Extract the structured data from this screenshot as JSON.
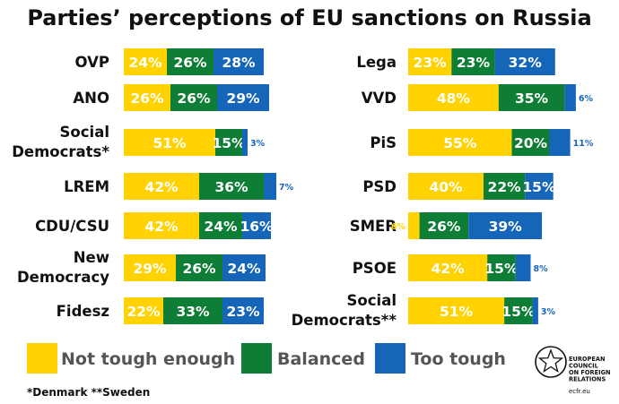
{
  "colors": {
    "not_tough_enough": "#FFD200",
    "balanced": "#0E7D36",
    "too_tough": "#1565B8"
  },
  "chart_data": {
    "type": "bar",
    "orientation": "horizontal",
    "stacked": true,
    "title": "Parties’ perceptions of EU sanctions on Russia",
    "legend": {
      "position": "bottom",
      "entries": [
        "Not tough enough",
        "Balanced",
        "Too tough"
      ]
    },
    "footnote": "*Denmark **Sweden",
    "series_names": [
      "Not tough enough",
      "Balanced",
      "Too tough"
    ],
    "columns": [
      {
        "parties": [
          {
            "label": [
              "OVP"
            ],
            "values": [
              24,
              26,
              28
            ]
          },
          {
            "label": [
              "ANO"
            ],
            "values": [
              26,
              26,
              29
            ]
          },
          {
            "label": [
              "Social",
              "Democrats*"
            ],
            "values": [
              51,
              15,
              3
            ]
          },
          {
            "label": [
              "LREM"
            ],
            "values": [
              42,
              36,
              7
            ]
          },
          {
            "label": [
              "CDU/CSU"
            ],
            "values": [
              42,
              24,
              16
            ]
          },
          {
            "label": [
              "New",
              "Democracy"
            ],
            "values": [
              29,
              26,
              24
            ]
          },
          {
            "label": [
              "Fidesz"
            ],
            "values": [
              22,
              33,
              23
            ]
          }
        ]
      },
      {
        "parties": [
          {
            "label": [
              "Lega"
            ],
            "values": [
              23,
              23,
              32
            ]
          },
          {
            "label": [
              "VVD"
            ],
            "values": [
              48,
              35,
              6
            ]
          },
          {
            "label": [
              "PiS"
            ],
            "values": [
              55,
              20,
              11
            ]
          },
          {
            "label": [
              "PSD"
            ],
            "values": [
              40,
              22,
              15
            ]
          },
          {
            "label": [
              "SMER"
            ],
            "values": [
              6,
              26,
              39
            ]
          },
          {
            "label": [
              "PSOE"
            ],
            "values": [
              42,
              15,
              8
            ]
          },
          {
            "label": [
              "Social",
              "Democrats**"
            ],
            "values": [
              51,
              15,
              3
            ]
          }
        ]
      }
    ]
  },
  "logo": {
    "lines": [
      "EUROPEAN",
      "COUNCIL",
      "ON FOREIGN",
      "RELATIONS"
    ],
    "url": "ecfr.eu"
  }
}
